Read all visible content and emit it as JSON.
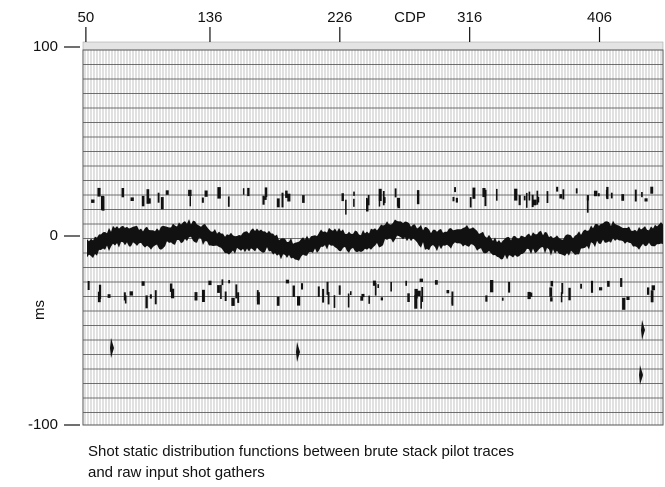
{
  "chart_data": {
    "type": "seismic",
    "xlabel": "CDP",
    "ylabel": "ms",
    "xlim": [
      48,
      450
    ],
    "xticks": [
      50,
      136,
      226,
      316,
      406
    ],
    "ylim": [
      -100,
      100
    ],
    "yticks": [
      100,
      0,
      -100
    ],
    "caption": [
      "Shot static distribution functions between brute stack pilot traces",
      "and raw input shot gathers"
    ]
  }
}
